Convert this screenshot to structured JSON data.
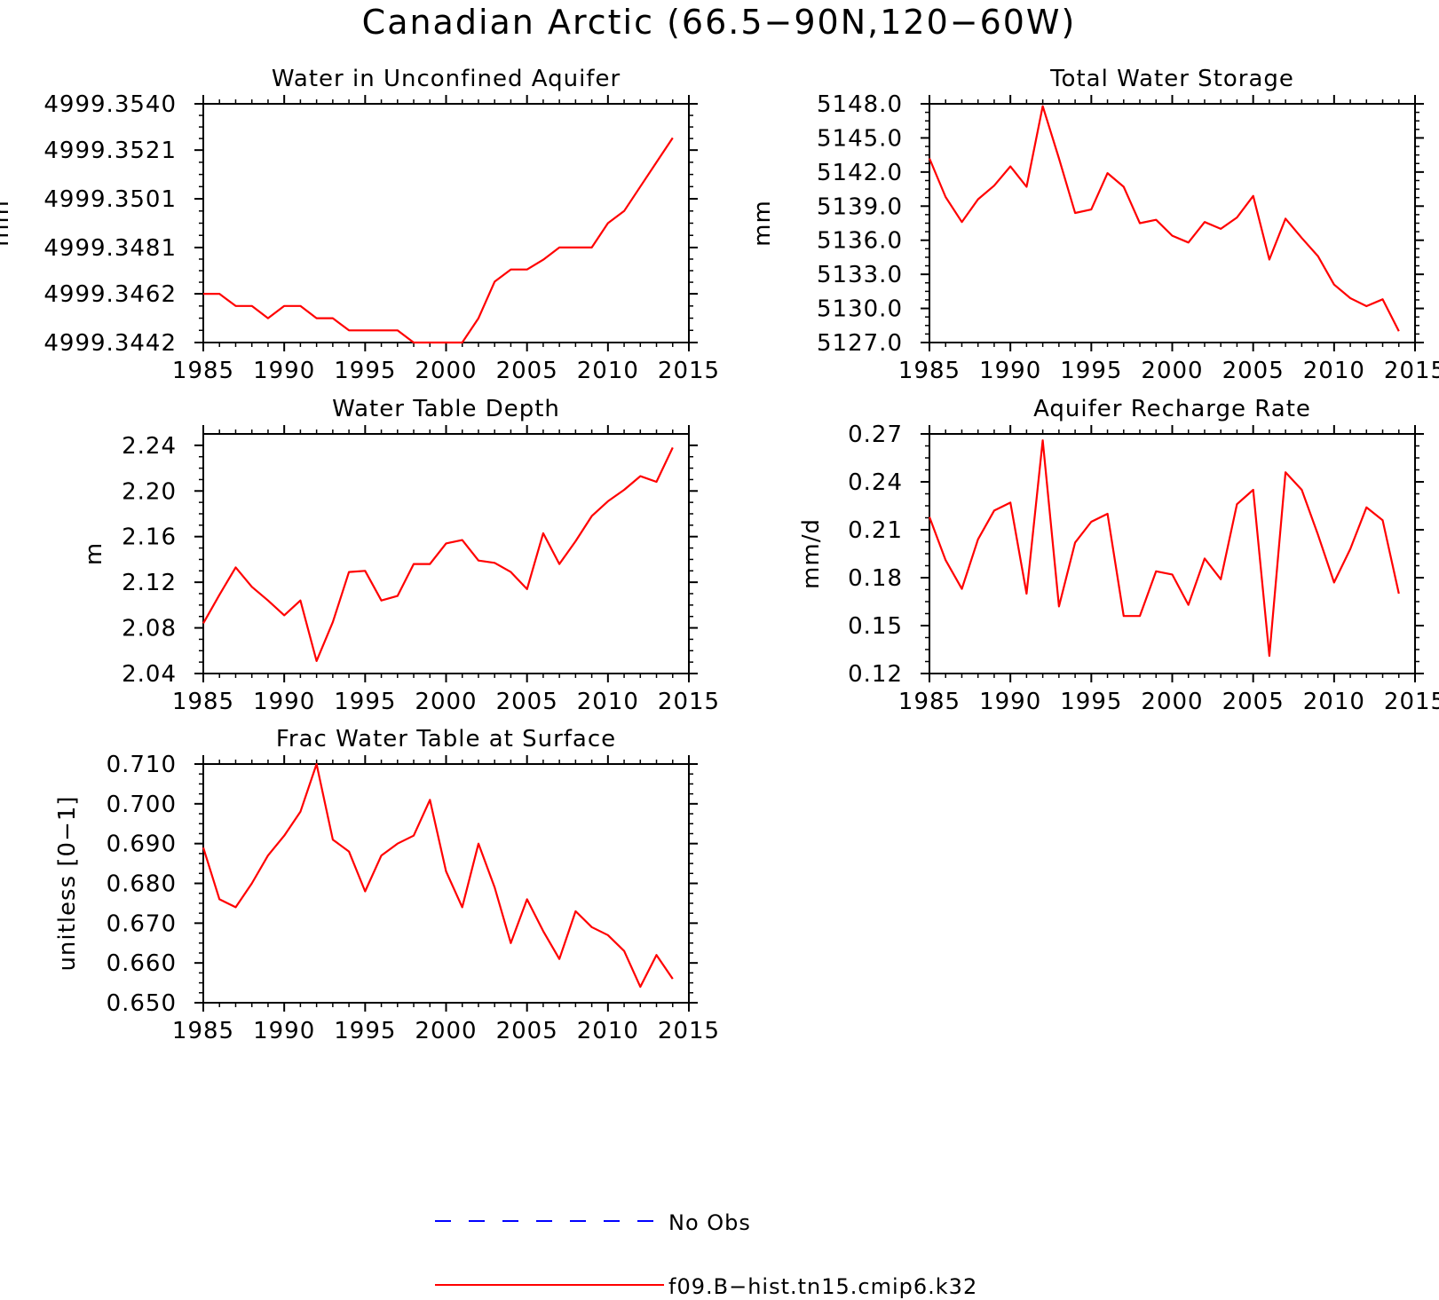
{
  "figure": {
    "title": "Canadian Arctic (66.5−90N,120−60W)",
    "legend": [
      {
        "label": "No Obs",
        "color": "#0000ff",
        "style": "dashed"
      },
      {
        "label": "f09.B−hist.tn15.cmip6.k32",
        "color": "#ff0000",
        "style": "solid"
      }
    ]
  },
  "chart_data": [
    {
      "type": "line",
      "title": "Water in Unconfined Aquifer",
      "ylabel": "mm",
      "xlim": [
        1985,
        2015
      ],
      "ylim": [
        4999.3442,
        4999.354
      ],
      "xticks": [
        1985,
        1990,
        1995,
        2000,
        2005,
        2010,
        2015
      ],
      "yticks": [
        4999.3442,
        4999.3462,
        4999.3481,
        4999.3501,
        4999.3521,
        4999.354
      ],
      "ytick_labels": [
        "4999.3442",
        "4999.3462",
        "4999.3481",
        "4999.3501",
        "4999.3521",
        "4999.3540"
      ],
      "grid": false,
      "series": [
        {
          "name": "f09.B−hist.tn15.cmip6.k32",
          "color": "#ff0000",
          "x": [
            1985,
            1986,
            1987,
            1988,
            1989,
            1990,
            1991,
            1992,
            1993,
            1994,
            1995,
            1996,
            1997,
            1998,
            1999,
            2000,
            2001,
            2002,
            2003,
            2004,
            2005,
            2006,
            2007,
            2008,
            2009,
            2010,
            2011,
            2012,
            2013,
            2014
          ],
          "y": [
            4999.3462,
            4999.3462,
            4999.3457,
            4999.3457,
            4999.3452,
            4999.3457,
            4999.3457,
            4999.3452,
            4999.3452,
            4999.3447,
            4999.3447,
            4999.3447,
            4999.3447,
            4999.3442,
            4999.3442,
            4999.3442,
            4999.3442,
            4999.3452,
            4999.3467,
            4999.3472,
            4999.3472,
            4999.3476,
            4999.3481,
            4999.3481,
            4999.3481,
            4999.3491,
            4999.3496,
            4999.3506,
            4999.3516,
            4999.3526
          ]
        }
      ]
    },
    {
      "type": "line",
      "title": "Total Water Storage",
      "ylabel": "mm",
      "xlim": [
        1985,
        2015
      ],
      "ylim": [
        5127.0,
        5148.0
      ],
      "xticks": [
        1985,
        1990,
        1995,
        2000,
        2005,
        2010,
        2015
      ],
      "yticks": [
        5127.0,
        5130.0,
        5133.0,
        5136.0,
        5139.0,
        5142.0,
        5145.0,
        5148.0
      ],
      "ytick_labels": [
        "5127.0",
        "5130.0",
        "5133.0",
        "5136.0",
        "5139.0",
        "5142.0",
        "5145.0",
        "5148.0"
      ],
      "grid": false,
      "series": [
        {
          "name": "f09.B−hist.tn15.cmip6.k32",
          "color": "#ff0000",
          "x": [
            1985,
            1986,
            1987,
            1988,
            1989,
            1990,
            1991,
            1992,
            1993,
            1994,
            1995,
            1996,
            1997,
            1998,
            1999,
            2000,
            2001,
            2002,
            2003,
            2004,
            2005,
            2006,
            2007,
            2008,
            2009,
            2010,
            2011,
            2012,
            2013,
            2014
          ],
          "y": [
            5143.2,
            5139.8,
            5137.6,
            5139.6,
            5140.8,
            5142.5,
            5140.7,
            5147.8,
            5143.2,
            5138.4,
            5138.7,
            5141.9,
            5140.7,
            5137.5,
            5137.8,
            5136.4,
            5135.8,
            5137.6,
            5137.0,
            5138.0,
            5139.9,
            5134.3,
            5137.9,
            5136.2,
            5134.6,
            5132.1,
            5130.9,
            5130.2,
            5130.8,
            5128.0
          ]
        }
      ]
    },
    {
      "type": "line",
      "title": "Water Table Depth",
      "ylabel": "m",
      "xlim": [
        1985,
        2015
      ],
      "ylim": [
        2.04,
        2.25
      ],
      "xticks": [
        1985,
        1990,
        1995,
        2000,
        2005,
        2010,
        2015
      ],
      "yticks": [
        2.04,
        2.08,
        2.12,
        2.16,
        2.2,
        2.24
      ],
      "ytick_labels": [
        "2.04",
        "2.08",
        "2.12",
        "2.16",
        "2.20",
        "2.24"
      ],
      "grid": false,
      "series": [
        {
          "name": "f09.B−hist.tn15.cmip6.k32",
          "color": "#ff0000",
          "x": [
            1985,
            1986,
            1987,
            1988,
            1989,
            1990,
            1991,
            1992,
            1993,
            1994,
            1995,
            1996,
            1997,
            1998,
            1999,
            2000,
            2001,
            2002,
            2003,
            2004,
            2005,
            2006,
            2007,
            2008,
            2009,
            2010,
            2011,
            2012,
            2013,
            2014
          ],
          "y": [
            2.084,
            2.109,
            2.133,
            2.116,
            2.104,
            2.091,
            2.104,
            2.051,
            2.085,
            2.129,
            2.13,
            2.104,
            2.108,
            2.136,
            2.136,
            2.154,
            2.157,
            2.139,
            2.137,
            2.129,
            2.114,
            2.163,
            2.136,
            2.156,
            2.178,
            2.191,
            2.201,
            2.213,
            2.208,
            2.238
          ]
        }
      ]
    },
    {
      "type": "line",
      "title": "Aquifer Recharge Rate",
      "ylabel": "mm/d",
      "xlim": [
        1985,
        2015
      ],
      "ylim": [
        0.12,
        0.27
      ],
      "xticks": [
        1985,
        1990,
        1995,
        2000,
        2005,
        2010,
        2015
      ],
      "yticks": [
        0.12,
        0.15,
        0.18,
        0.21,
        0.24,
        0.27
      ],
      "ytick_labels": [
        "0.12",
        "0.15",
        "0.18",
        "0.21",
        "0.24",
        "0.27"
      ],
      "grid": false,
      "series": [
        {
          "name": "f09.B−hist.tn15.cmip6.k32",
          "color": "#ff0000",
          "x": [
            1985,
            1986,
            1987,
            1988,
            1989,
            1990,
            1991,
            1992,
            1993,
            1994,
            1995,
            1996,
            1997,
            1998,
            1999,
            2000,
            2001,
            2002,
            2003,
            2004,
            2005,
            2006,
            2007,
            2008,
            2009,
            2010,
            2011,
            2012,
            2013,
            2014
          ],
          "y": [
            0.218,
            0.191,
            0.173,
            0.204,
            0.222,
            0.227,
            0.17,
            0.266,
            0.162,
            0.202,
            0.215,
            0.22,
            0.156,
            0.156,
            0.184,
            0.182,
            0.163,
            0.192,
            0.179,
            0.226,
            0.235,
            0.131,
            0.246,
            0.235,
            0.207,
            0.177,
            0.198,
            0.224,
            0.216,
            0.17
          ]
        }
      ]
    },
    {
      "type": "line",
      "title": "Frac Water Table at Surface",
      "ylabel": "unitless [0−1]",
      "xlim": [
        1985,
        2015
      ],
      "ylim": [
        0.65,
        0.71
      ],
      "xticks": [
        1985,
        1990,
        1995,
        2000,
        2005,
        2010,
        2015
      ],
      "yticks": [
        0.65,
        0.66,
        0.67,
        0.68,
        0.69,
        0.7,
        0.71
      ],
      "ytick_labels": [
        "0.650",
        "0.660",
        "0.670",
        "0.680",
        "0.690",
        "0.700",
        "0.710"
      ],
      "grid": false,
      "series": [
        {
          "name": "f09.B−hist.tn15.cmip6.k32",
          "color": "#ff0000",
          "x": [
            1985,
            1986,
            1987,
            1988,
            1989,
            1990,
            1991,
            1992,
            1993,
            1994,
            1995,
            1996,
            1997,
            1998,
            1999,
            2000,
            2001,
            2002,
            2003,
            2004,
            2005,
            2006,
            2007,
            2008,
            2009,
            2010,
            2011,
            2012,
            2013,
            2014
          ],
          "y": [
            0.689,
            0.676,
            0.674,
            0.68,
            0.687,
            0.692,
            0.698,
            0.71,
            0.691,
            0.688,
            0.678,
            0.687,
            0.69,
            0.692,
            0.701,
            0.683,
            0.674,
            0.69,
            0.679,
            0.665,
            0.676,
            0.668,
            0.661,
            0.673,
            0.669,
            0.667,
            0.663,
            0.654,
            0.662,
            0.656
          ]
        }
      ]
    }
  ]
}
